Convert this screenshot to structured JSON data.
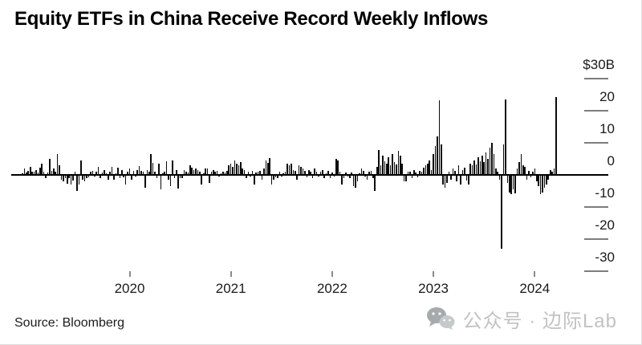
{
  "header": {
    "title": "Equity ETFs in China Receive Record Weekly Inflows"
  },
  "footer": {
    "source": "Source: Bloomberg",
    "watermark_text": "公众号 · 边际Lab",
    "watermark_icon": "wechat-icon"
  },
  "chart_data": {
    "type": "bar",
    "title": "Equity ETFs in China Receive Record Weekly Inflows",
    "subtitle": "",
    "unit": "billions of dollars per week",
    "frequency": "weekly",
    "source": "Bloomberg",
    "bar_color": "#0a0a0a",
    "grid": false,
    "legend_position": "none",
    "y_axis": {
      "side": "right",
      "range": [
        -33,
        31
      ],
      "ticks": [
        {
          "label": "$30B",
          "value": 30
        },
        {
          "label": "20",
          "value": 20
        },
        {
          "label": "10",
          "value": 10
        },
        {
          "label": "0",
          "value": 0
        },
        {
          "label": "-10",
          "value": -10
        },
        {
          "label": "-20",
          "value": -20
        },
        {
          "label": "-30",
          "value": -30
        }
      ]
    },
    "x_axis": {
      "range_estimate": [
        "2019-01",
        "2024-04"
      ],
      "ticks": [
        {
          "label": "2020",
          "week_index": 55
        },
        {
          "label": "2021",
          "week_index": 107
        },
        {
          "label": "2022",
          "week_index": 159
        },
        {
          "label": "2023",
          "week_index": 211
        },
        {
          "label": "2024",
          "week_index": 263
        }
      ]
    },
    "values": [
      0.5,
      1.8,
      0.7,
      1.2,
      2.5,
      1.0,
      0.8,
      1.5,
      0.6,
      2.2,
      3.5,
      0.8,
      -1.0,
      0.6,
      4.8,
      1.2,
      2.0,
      0.9,
      6.5,
      3.0,
      -1.5,
      -2.2,
      -1.0,
      -2.8,
      -1.2,
      -3.0,
      -1.8,
      1.0,
      -5.0,
      -3.2,
      4.5,
      -1.5,
      -2.0,
      -1.0,
      -0.8,
      0.8,
      1.2,
      -0.6,
      1.0,
      2.5,
      -1.0,
      0.7,
      1.5,
      0.5,
      -1.5,
      1.0,
      2.3,
      -1.5,
      0.5,
      2.2,
      -1.0,
      1.5,
      -0.8,
      -3.2,
      1.0,
      1.8,
      -1.5,
      1.2,
      -0.6,
      1.5,
      2.6,
      1.2,
      1.0,
      -4.0,
      1.5,
      0.8,
      6.4,
      3.6,
      1.0,
      -1.0,
      3.3,
      -4.7,
      0.5,
      1.0,
      4.1,
      -1.5,
      -3.7,
      4.3,
      -1.0,
      1.5,
      -4.4,
      -1.0,
      -1.2,
      1.5,
      1.0,
      0.7,
      2.8,
      2.2,
      1.5,
      1.8,
      1.5,
      1.0,
      -3.0,
      0.5,
      2.0,
      2.0,
      -2.5,
      1.0,
      1.5,
      0.8,
      1.2,
      -0.5,
      0.5,
      1.0,
      0.6,
      1.2,
      3.0,
      3.3,
      2.5,
      4.3,
      3.5,
      3.0,
      3.8,
      2.0,
      1.5,
      -1.0,
      0.8,
      -0.5,
      1.2,
      -3.1,
      0.7,
      1.0,
      1.2,
      -1.5,
      2.0,
      4.5,
      3.7,
      5.2,
      -3.2,
      -1.5,
      -0.8,
      -1.0,
      0.8,
      -0.7,
      0.5,
      1.0,
      3.3,
      2.8,
      3.5,
      1.5,
      1.2,
      -1.5,
      3.0,
      2.5,
      1.8,
      1.2,
      -0.8,
      1.5,
      0.8,
      -1.2,
      2.0,
      1.0,
      -0.5,
      0.8,
      1.5,
      -1.0,
      0.5,
      1.2,
      -1.2,
      0.7,
      -0.5,
      5.0,
      4.5,
      1.0,
      -3.0,
      -1.2,
      0.7,
      -0.5,
      -1.0,
      0.6,
      -3.6,
      -4.0,
      -2.0,
      0.5,
      1.8,
      1.2,
      -0.7,
      -1.5,
      0.8,
      1.2,
      -1.0,
      -5.0,
      2.5,
      7.6,
      3.0,
      6.0,
      4.2,
      3.5,
      5.5,
      2.8,
      6.5,
      4.0,
      3.2,
      7.3,
      5.8,
      3.5,
      -2.0,
      -2.2,
      1.0,
      0.8,
      -1.2,
      1.5,
      0.7,
      -0.8,
      1.2,
      1.0,
      2.2,
      2.8,
      3.5,
      4.5,
      1.5,
      6.3,
      9.0,
      12.0,
      23.2,
      9.5,
      -3.0,
      -4.2,
      -2.5,
      1.0,
      -1.5,
      2.0,
      1.2,
      -2.0,
      3.0,
      -3.0,
      1.5,
      2.2,
      -1.8,
      -3.0,
      3.5,
      2.8,
      4.5,
      3.2,
      5.5,
      4.2,
      6.0,
      3.8,
      7.0,
      5.0,
      8.5,
      10.0,
      6.5,
      2.0,
      1.0,
      -1.5,
      -23.0,
      9.5,
      23.4,
      -2.5,
      -5.5,
      -6.0,
      -4.5,
      -5.8,
      2.0,
      4.0,
      6.3,
      3.0,
      2.5,
      -1.5,
      1.2,
      -0.8,
      1.0,
      2.0,
      -2.0,
      -3.5,
      -6.0,
      -5.5,
      -4.0,
      -3.0,
      -1.5,
      1.5,
      0.8,
      2.0,
      24.2
    ]
  }
}
